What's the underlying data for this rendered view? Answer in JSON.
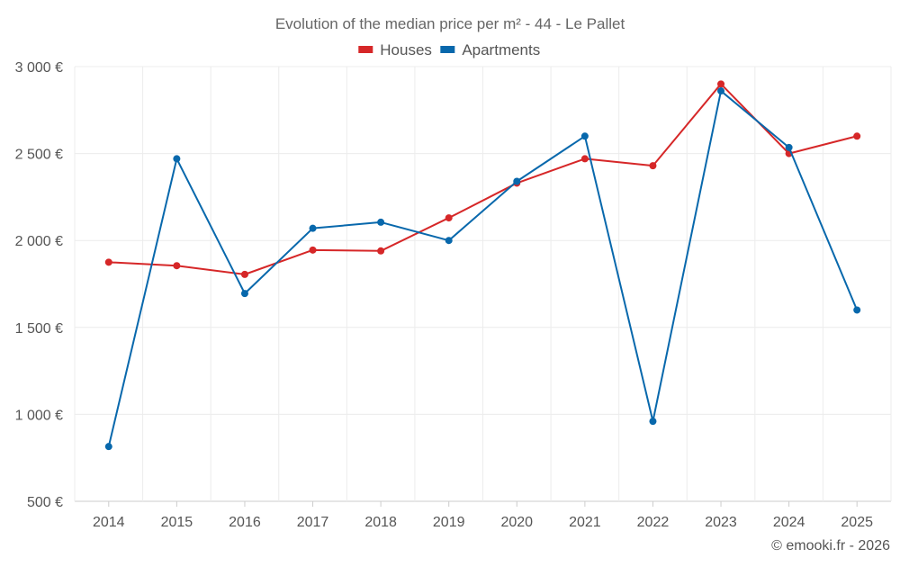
{
  "chart_data": {
    "type": "line",
    "title": "Evolution of the median price per m² - 44 - Le Pallet",
    "xlabel": "",
    "ylabel": "",
    "categories": [
      "2014",
      "2015",
      "2016",
      "2017",
      "2018",
      "2019",
      "2020",
      "2021",
      "2022",
      "2023",
      "2024",
      "2025"
    ],
    "y_ticks": [
      500,
      1000,
      1500,
      2000,
      2500,
      3000
    ],
    "y_tick_labels": [
      "500 €",
      "1 000 €",
      "1 500 €",
      "2 000 €",
      "2 500 €",
      "3 000 €"
    ],
    "ylim": [
      500,
      3000
    ],
    "grid": true,
    "legend_position": "top-center",
    "series": [
      {
        "name": "Houses",
        "color": "#d62728",
        "values": [
          1875,
          1855,
          1805,
          1945,
          1940,
          2130,
          2330,
          2470,
          2430,
          2900,
          2500,
          2600
        ]
      },
      {
        "name": "Apartments",
        "color": "#0868ac",
        "values": [
          815,
          2470,
          1695,
          2070,
          2105,
          2000,
          2340,
          2600,
          960,
          2860,
          2535,
          1600
        ]
      }
    ]
  },
  "footer": {
    "copyright": "© emooki.fr - 2026"
  }
}
